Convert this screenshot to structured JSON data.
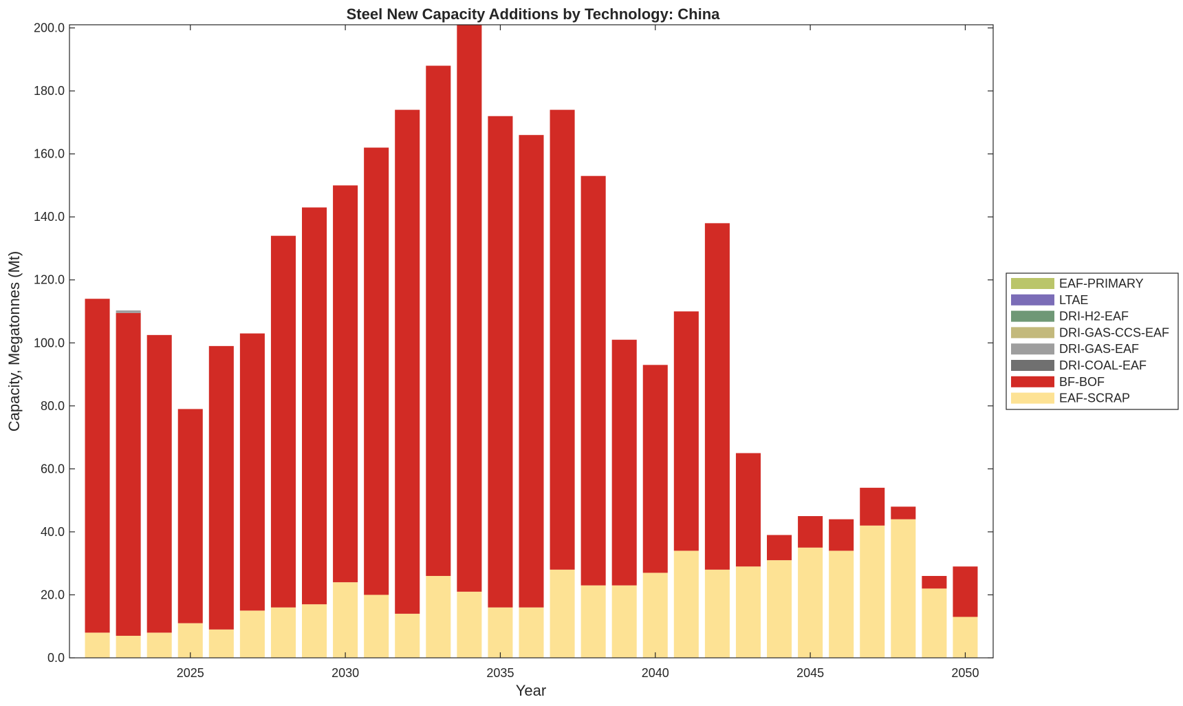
{
  "chart_data": {
    "type": "bar",
    "stacked": true,
    "title": "Steel New Capacity Additions by Technology: China",
    "xlabel": "Year",
    "ylabel": "Capacity, Megatonnes (Mt)",
    "ylim": [
      0,
      201
    ],
    "xlim": [
      2021.1,
      2050.9
    ],
    "grid": false,
    "legend_position": "right",
    "x_ticks": [
      2025,
      2030,
      2035,
      2040,
      2045,
      2050
    ],
    "y_ticks": [
      0,
      20,
      40,
      60,
      80,
      100,
      120,
      140,
      160,
      180,
      200
    ],
    "y_tick_labels": [
      "0.0",
      "20.0",
      "40.0",
      "60.0",
      "80.0",
      "100.0",
      "120.0",
      "140.0",
      "160.0",
      "180.0",
      "200.0"
    ],
    "categories": [
      2022,
      2023,
      2024,
      2025,
      2026,
      2027,
      2028,
      2029,
      2030,
      2031,
      2032,
      2033,
      2034,
      2035,
      2036,
      2037,
      2038,
      2039,
      2040,
      2041,
      2042,
      2043,
      2044,
      2045,
      2046,
      2047,
      2048,
      2049,
      2050
    ],
    "series": [
      {
        "name": "EAF-SCRAP",
        "color": "#FDE294",
        "values": [
          8,
          7,
          8,
          11,
          9,
          15,
          16,
          17,
          24,
          20,
          14,
          26,
          21,
          16,
          16,
          28,
          23,
          23,
          27,
          34,
          28,
          29,
          31,
          35,
          34,
          42,
          44,
          22,
          13
        ]
      },
      {
        "name": "BF-BOF",
        "color": "#D22B25",
        "values": [
          106,
          102.5,
          94.5,
          68,
          90,
          88,
          118,
          126,
          126,
          142,
          160,
          162,
          180,
          156,
          150,
          146,
          130,
          78,
          66,
          76,
          110,
          36,
          8,
          10,
          10,
          12,
          4,
          4,
          16
        ]
      },
      {
        "name": "DRI-COAL-EAF",
        "color": "#707070",
        "values": [
          0,
          0,
          0,
          0,
          0,
          0,
          0,
          0,
          0,
          0,
          0,
          0,
          0,
          0,
          0,
          0,
          0,
          0,
          0,
          0,
          0,
          0,
          0,
          0,
          0,
          0,
          0,
          0,
          0
        ]
      },
      {
        "name": "DRI-GAS-EAF",
        "color": "#9E9E9E",
        "values": [
          0,
          0.8,
          0,
          0,
          0,
          0,
          0,
          0,
          0,
          0,
          0,
          0,
          0,
          0,
          0,
          0,
          0,
          0,
          0,
          0,
          0,
          0,
          0,
          0,
          0,
          0,
          0,
          0,
          0
        ]
      },
      {
        "name": "DRI-GAS-CCS-EAF",
        "color": "#C3B97C",
        "values": [
          0,
          0,
          0,
          0,
          0,
          0,
          0,
          0,
          0,
          0,
          0,
          0,
          0,
          0,
          0,
          0,
          0,
          0,
          0,
          0,
          0,
          0,
          0,
          0,
          0,
          0,
          0,
          0,
          0
        ]
      },
      {
        "name": "DRI-H2-EAF",
        "color": "#6F9876",
        "values": [
          0,
          0,
          0,
          0,
          0,
          0,
          0,
          0,
          0,
          0,
          0,
          0,
          0,
          0,
          0,
          0,
          0,
          0,
          0,
          0,
          0,
          0,
          0,
          0,
          0,
          0,
          0,
          0,
          0
        ]
      },
      {
        "name": "LTAE",
        "color": "#7B6DB7",
        "values": [
          0,
          0,
          0,
          0,
          0,
          0,
          0,
          0,
          0,
          0,
          0,
          0,
          0,
          0,
          0,
          0,
          0,
          0,
          0,
          0,
          0,
          0,
          0,
          0,
          0,
          0,
          0,
          0,
          0
        ]
      },
      {
        "name": "EAF-PRIMARY",
        "color": "#BAC56A",
        "values": [
          0,
          0,
          0,
          0,
          0,
          0,
          0,
          0,
          0,
          0,
          0,
          0,
          0,
          0,
          0,
          0,
          0,
          0,
          0,
          0,
          0,
          0,
          0,
          0,
          0,
          0,
          0,
          0,
          0
        ]
      }
    ],
    "legend_order": [
      "EAF-PRIMARY",
      "LTAE",
      "DRI-H2-EAF",
      "DRI-GAS-CCS-EAF",
      "DRI-GAS-EAF",
      "DRI-COAL-EAF",
      "BF-BOF",
      "EAF-SCRAP"
    ]
  }
}
